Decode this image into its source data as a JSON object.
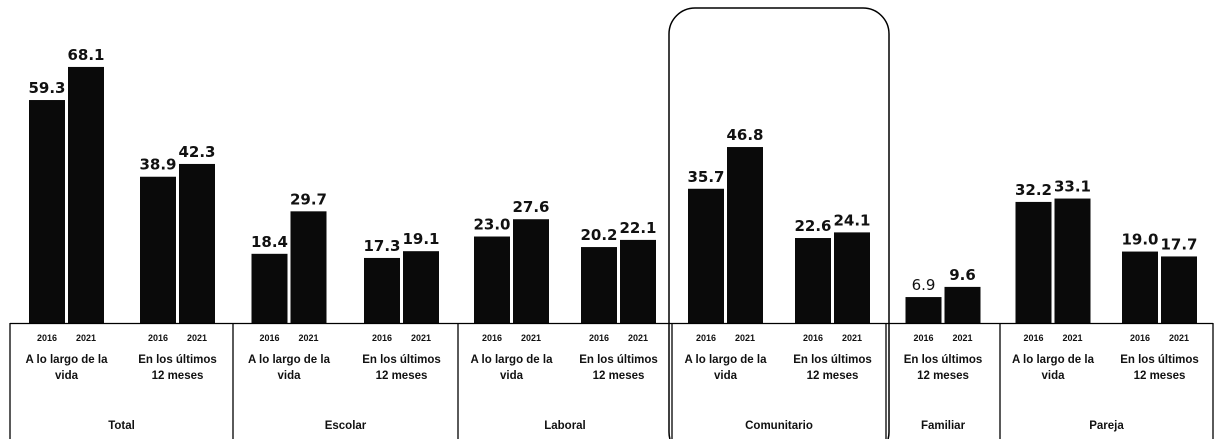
{
  "chart_data": {
    "type": "bar",
    "years": [
      "2016",
      "2021"
    ],
    "groups": [
      {
        "name": "Total",
        "categories": [
          {
            "label": [
              "A lo largo de la",
              "vida"
            ],
            "values": [
              "59.3",
              "68.1"
            ]
          },
          {
            "label": [
              "En los últimos",
              "12 meses"
            ],
            "values": [
              "38.9",
              "42.3"
            ]
          }
        ]
      },
      {
        "name": "Escolar",
        "categories": [
          {
            "label": [
              "A lo largo de la",
              "vida"
            ],
            "values": [
              "18.4",
              "29.7"
            ]
          },
          {
            "label": [
              "En los últimos",
              "12 meses"
            ],
            "values": [
              "17.3",
              "19.1"
            ]
          }
        ]
      },
      {
        "name": "Laboral",
        "categories": [
          {
            "label": [
              "A lo largo de la",
              "vida"
            ],
            "values": [
              "23.0",
              "27.6"
            ]
          },
          {
            "label": [
              "En los últimos",
              "12 meses"
            ],
            "values": [
              "20.2",
              "22.1"
            ]
          }
        ]
      },
      {
        "name": "Comunitario",
        "highlighted": true,
        "categories": [
          {
            "label": [
              "A lo largo de la",
              "vida"
            ],
            "values": [
              "35.7",
              "46.8"
            ]
          },
          {
            "label": [
              "En los últimos",
              "12 meses"
            ],
            "values": [
              "22.6",
              "24.1"
            ]
          }
        ]
      },
      {
        "name": "Familiar",
        "categories": [
          {
            "label": [
              "En los últimos",
              "12 meses"
            ],
            "values": [
              "6.9",
              "9.6"
            ]
          }
        ]
      },
      {
        "name": "Pareja",
        "categories": [
          {
            "label": [
              "A lo largo de la",
              "vida"
            ],
            "values": [
              "32.2",
              "33.1"
            ]
          },
          {
            "label": [
              "En los últimos",
              "12 meses"
            ],
            "values": [
              "19.0",
              "17.7"
            ]
          }
        ]
      }
    ],
    "ylim": [
      0,
      70
    ],
    "legend": "none",
    "grid": false,
    "colors": {
      "bar": "#0a0a0a",
      "axis": "#000000",
      "highlight_box": "#000000"
    }
  }
}
